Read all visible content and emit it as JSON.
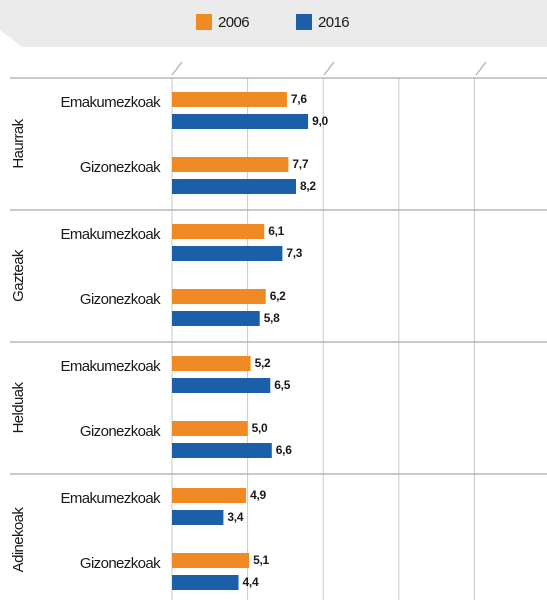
{
  "chart_data": {
    "type": "bar",
    "orientation": "horizontal",
    "groups": [
      "Haurrak",
      "Gazteak",
      "Helduak",
      "Adinekoak"
    ],
    "categories": [
      "Emakumezkoak",
      "Gizonezkoak",
      "Emakumezkoak",
      "Gizonezkoak",
      "Emakumezkoak",
      "Gizonezkoak",
      "Emakumezkoak",
      "Gizonezkoak"
    ],
    "series": [
      {
        "name": "2006",
        "color": "#f08a24",
        "values": [
          7.6,
          7.7,
          6.1,
          6.2,
          5.2,
          5.0,
          4.9,
          5.1
        ],
        "value_labels": [
          "7,6",
          "7,7",
          "6,1",
          "6,2",
          "5,2",
          "5,0",
          "4,9",
          "5,1"
        ]
      },
      {
        "name": "2016",
        "color": "#1a5fa8",
        "values": [
          9.0,
          8.2,
          7.3,
          5.8,
          6.5,
          6.6,
          3.4,
          4.4
        ],
        "value_labels": [
          "9,0",
          "8,2",
          "7,3",
          "5,8",
          "6,5",
          "6,6",
          "3,4",
          "4,4"
        ]
      }
    ],
    "xlim": [
      0,
      24.8
    ],
    "xticks": [
      0,
      5,
      10,
      15,
      20
    ],
    "grid": true
  }
}
